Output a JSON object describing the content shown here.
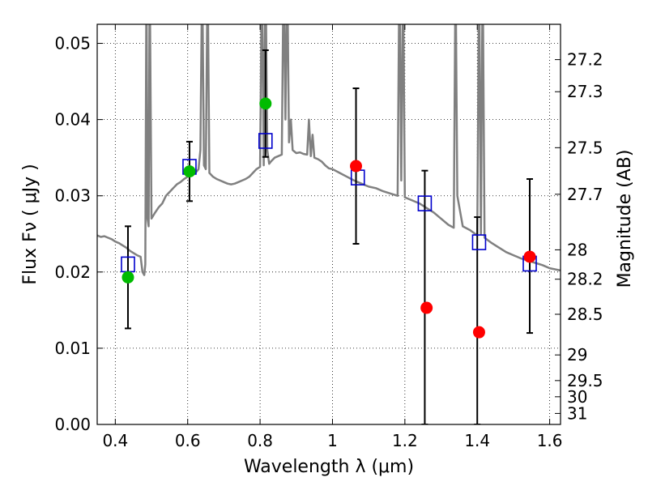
{
  "chart_data": {
    "type": "scatter",
    "title": "",
    "xlabel": "Wavelength  λ (μm)",
    "ylabel": "Flux  Fν  ( μJy )",
    "y2label": "Magnitude (AB)",
    "xlim": [
      0.35,
      1.63
    ],
    "ylim": [
      0.0,
      0.0525
    ],
    "grid": true,
    "x_ticks": [
      0.4,
      0.6,
      0.8,
      1.0,
      1.2,
      1.4,
      1.6
    ],
    "x_tick_labels": [
      "0.4",
      "0.6",
      "0.8",
      "1",
      "1.2",
      "1.4",
      "1.6"
    ],
    "y_ticks": [
      0.0,
      0.01,
      0.02,
      0.03,
      0.04,
      0.05
    ],
    "y_tick_labels": [
      "0.00",
      "0.01",
      "0.02",
      "0.03",
      "0.04",
      "0.05"
    ],
    "y2_ticks": [
      27.2,
      27.3,
      27.5,
      27.7,
      28,
      28.2,
      28.5,
      29,
      29.5,
      30,
      31
    ],
    "y2_tick_labels": [
      "27.2",
      "27.3",
      "27.5",
      "27.7",
      "28",
      "28.2",
      "28.5",
      "29",
      "29.5",
      "30",
      "31"
    ],
    "colors": {
      "model": "#808080",
      "model_points": "#0000cc",
      "green_points": "#00bb00",
      "red_points": "#ff0000",
      "errorbars": "#000000"
    },
    "model_spectrum": {
      "x": [
        0.35,
        0.36,
        0.37,
        0.38,
        0.39,
        0.4,
        0.41,
        0.42,
        0.43,
        0.44,
        0.45,
        0.46,
        0.47,
        0.475,
        0.48,
        0.483,
        0.486,
        0.489,
        0.492,
        0.495,
        0.5,
        0.51,
        0.52,
        0.53,
        0.54,
        0.55,
        0.56,
        0.57,
        0.58,
        0.59,
        0.6,
        0.61,
        0.62,
        0.625,
        0.63,
        0.635,
        0.64,
        0.645,
        0.65,
        0.655,
        0.66,
        0.67,
        0.68,
        0.69,
        0.7,
        0.71,
        0.72,
        0.73,
        0.74,
        0.75,
        0.76,
        0.77,
        0.78,
        0.79,
        0.8,
        0.805,
        0.81,
        0.815,
        0.82,
        0.825,
        0.83,
        0.84,
        0.85,
        0.86,
        0.865,
        0.87,
        0.875,
        0.88,
        0.885,
        0.89,
        0.9,
        0.91,
        0.92,
        0.93,
        0.935,
        0.94,
        0.945,
        0.95,
        0.96,
        0.97,
        0.98,
        0.99,
        1.0,
        1.02,
        1.04,
        1.06,
        1.08,
        1.1,
        1.12,
        1.14,
        1.16,
        1.18,
        1.185,
        1.19,
        1.195,
        1.2,
        1.22,
        1.24,
        1.26,
        1.28,
        1.3,
        1.32,
        1.335,
        1.34,
        1.345,
        1.36,
        1.38,
        1.4,
        1.405,
        1.41,
        1.415,
        1.42,
        1.44,
        1.46,
        1.48,
        1.5,
        1.52,
        1.54,
        1.56,
        1.58,
        1.6,
        1.63
      ],
      "y": [
        0.0248,
        0.0246,
        0.0247,
        0.0245,
        0.0243,
        0.024,
        0.0238,
        0.0235,
        0.0232,
        0.0228,
        0.0225,
        0.0222,
        0.022,
        0.02,
        0.0196,
        0.021,
        0.06,
        0.027,
        0.026,
        0.06,
        0.027,
        0.0278,
        0.0285,
        0.029,
        0.03,
        0.0305,
        0.031,
        0.0315,
        0.0318,
        0.0322,
        0.0325,
        0.0328,
        0.033,
        0.0332,
        0.0335,
        0.036,
        0.06,
        0.034,
        0.0335,
        0.06,
        0.033,
        0.0325,
        0.0322,
        0.032,
        0.0318,
        0.0316,
        0.0315,
        0.0316,
        0.0318,
        0.032,
        0.0322,
        0.0325,
        0.033,
        0.0335,
        0.0338,
        0.06,
        0.034,
        0.06,
        0.036,
        0.0342,
        0.0345,
        0.035,
        0.0352,
        0.0354,
        0.06,
        0.04,
        0.06,
        0.037,
        0.04,
        0.036,
        0.0356,
        0.0357,
        0.0355,
        0.0354,
        0.04,
        0.0352,
        0.038,
        0.035,
        0.0348,
        0.0345,
        0.034,
        0.0336,
        0.0335,
        0.033,
        0.0325,
        0.032,
        0.0316,
        0.0312,
        0.031,
        0.0306,
        0.0303,
        0.03,
        0.06,
        0.032,
        0.06,
        0.0298,
        0.0294,
        0.029,
        0.0284,
        0.0278,
        0.027,
        0.0262,
        0.0258,
        0.06,
        0.03,
        0.026,
        0.0255,
        0.0248,
        0.06,
        0.025,
        0.06,
        0.0245,
        0.0238,
        0.0232,
        0.0226,
        0.0222,
        0.0218,
        0.0215,
        0.0212,
        0.0209,
        0.0205,
        0.0202
      ]
    },
    "model_points": {
      "x": [
        0.435,
        0.605,
        0.815,
        1.07,
        1.255,
        1.405,
        1.545
      ],
      "y": [
        0.021,
        0.0338,
        0.0372,
        0.0324,
        0.029,
        0.0239,
        0.0211
      ]
    },
    "observed_green": {
      "x": [
        0.435,
        0.605,
        0.815
      ],
      "y": [
        0.0193,
        0.0332,
        0.0421
      ],
      "err": [
        0.0067,
        0.0039,
        0.007
      ]
    },
    "observed_red": {
      "x": [
        1.065,
        1.26,
        1.405,
        1.545
      ],
      "y": [
        0.0339,
        0.0153,
        0.0121,
        0.022
      ],
      "err_low": [
        0.0102,
        0.0153,
        0.0121,
        0.01
      ],
      "err_high": [
        0.0102,
        0.018,
        0.0151,
        0.0102
      ],
      "err_x": [
        1.065,
        1.255,
        1.4,
        1.545
      ]
    }
  }
}
